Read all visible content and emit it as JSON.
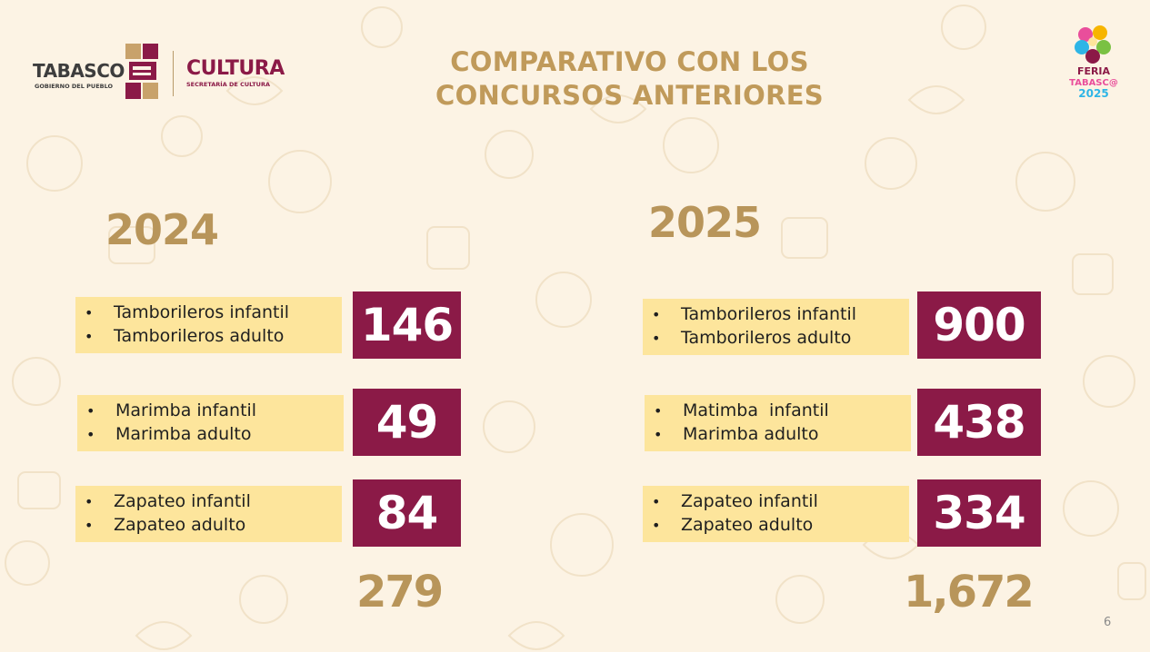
{
  "header": {
    "title_line1": "COMPARATIVO CON LOS",
    "title_line2": "CONCURSOS ANTERIORES",
    "logo_tabasco": "TABASCO",
    "logo_tabasco_sub": "GOBIERNO DEL PUEBLO",
    "logo_cultura": "CULTURA",
    "logo_cultura_sub": "SECRETARÍA DE CULTURA",
    "feria_logo_text": "FERIA TABASCO 2025"
  },
  "col2024": {
    "year": "2024",
    "rows": [
      {
        "items": [
          "Tamborileros infantil",
          "Tamborileros adulto"
        ],
        "value": "146"
      },
      {
        "items": [
          "Marimba infantil",
          "Marimba adulto"
        ],
        "value": "49"
      },
      {
        "items": [
          "Zapateo infantil",
          "Zapateo adulto"
        ],
        "value": "84"
      }
    ],
    "total": "279"
  },
  "col2025": {
    "year": "2025",
    "rows": [
      {
        "items": [
          "Tamborileros infantil",
          "Tamborileros adulto"
        ],
        "value": "900"
      },
      {
        "items": [
          "Matimba  infantil",
          "Marimba adulto"
        ],
        "value": "438"
      },
      {
        "items": [
          "Zapateo infantil",
          "Zapateo adulto"
        ],
        "value": "334"
      }
    ],
    "total": "1,672"
  },
  "bullet": "•",
  "page_number": "6",
  "colors": {
    "background": "#fcf3e4",
    "gold": "#b8955a",
    "wine": "#8b1a47",
    "label_bg": "#fde59c"
  }
}
